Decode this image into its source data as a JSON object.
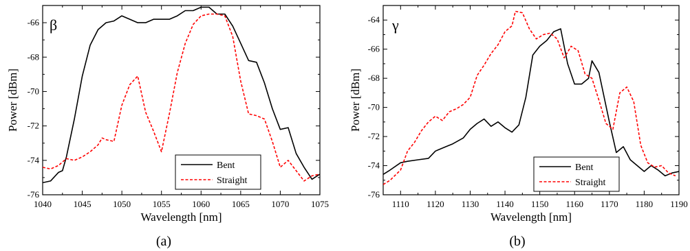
{
  "chart_data": [
    {
      "type": "line",
      "panel_label": "β",
      "caption": "(a)",
      "xlabel": "Wavelength [nm]",
      "ylabel": "Power [dBm]",
      "xlim": [
        1040,
        1075
      ],
      "ylim": [
        -76,
        -65
      ],
      "xticks": [
        1040,
        1045,
        1050,
        1055,
        1060,
        1065,
        1070,
        1075
      ],
      "yticks": [
        -76,
        -74,
        -72,
        -70,
        -68,
        -66
      ],
      "legend_position": "bottom-right",
      "grid": false,
      "series": [
        {
          "name": "Bent",
          "color": "#000000",
          "style": "solid",
          "x": [
            1040,
            1041,
            1042,
            1042.5,
            1043,
            1044,
            1045,
            1046,
            1047,
            1047.5,
            1048,
            1049,
            1050,
            1051,
            1052,
            1053,
            1054,
            1055,
            1056,
            1057,
            1058,
            1059,
            1060,
            1061,
            1062,
            1063,
            1064,
            1065,
            1066,
            1067,
            1068,
            1069,
            1070,
            1071,
            1072,
            1073,
            1074,
            1075
          ],
          "y": [
            -75.3,
            -75.2,
            -74.7,
            -74.6,
            -73.8,
            -71.6,
            -69.1,
            -67.3,
            -66.4,
            -66.2,
            -66.0,
            -65.9,
            -65.6,
            -65.8,
            -66.0,
            -66.0,
            -65.8,
            -65.8,
            -65.8,
            -65.6,
            -65.3,
            -65.3,
            -65.1,
            -65.1,
            -65.5,
            -65.5,
            -66.2,
            -67.2,
            -68.2,
            -68.3,
            -69.5,
            -71.0,
            -72.2,
            -72.1,
            -73.6,
            -74.4,
            -75.1,
            -74.8
          ]
        },
        {
          "name": "Straight",
          "color": "#ff0000",
          "style": "dashed",
          "x": [
            1040,
            1041,
            1042,
            1043,
            1044,
            1045,
            1046,
            1047,
            1047.5,
            1048,
            1049,
            1050,
            1051,
            1052,
            1053,
            1054,
            1055,
            1056,
            1057,
            1058,
            1059,
            1060,
            1061,
            1062,
            1063,
            1064,
            1065,
            1066,
            1067,
            1068,
            1069,
            1070,
            1071,
            1072,
            1073,
            1074,
            1075
          ],
          "y": [
            -74.4,
            -74.5,
            -74.3,
            -73.9,
            -74.0,
            -73.8,
            -73.5,
            -73.1,
            -72.7,
            -72.8,
            -72.9,
            -70.8,
            -69.6,
            -69.1,
            -71.2,
            -72.3,
            -73.5,
            -71.3,
            -68.9,
            -67.2,
            -66.1,
            -65.6,
            -65.5,
            -65.5,
            -65.6,
            -66.8,
            -69.4,
            -71.3,
            -71.4,
            -71.6,
            -72.9,
            -74.4,
            -74.0,
            -74.6,
            -75.2,
            -74.9,
            -74.8
          ]
        }
      ]
    },
    {
      "type": "line",
      "panel_label": "γ",
      "caption": "(b)",
      "xlabel": "Wavelength [nm]",
      "ylabel": "Power [dBm]",
      "xlim": [
        1105,
        1190
      ],
      "ylim": [
        -76,
        -63
      ],
      "xticks": [
        1110,
        1120,
        1130,
        1140,
        1150,
        1160,
        1170,
        1180,
        1190
      ],
      "yticks": [
        -76,
        -74,
        -72,
        -70,
        -68,
        -66,
        -64
      ],
      "legend_position": "bottom-right",
      "grid": false,
      "series": [
        {
          "name": "Bent",
          "color": "#000000",
          "style": "solid",
          "x": [
            1105,
            1107,
            1110,
            1112,
            1115,
            1118,
            1120,
            1123,
            1125,
            1128,
            1130,
            1132,
            1134,
            1136,
            1138,
            1140,
            1142,
            1144,
            1146,
            1148,
            1150,
            1152,
            1154,
            1156,
            1158,
            1160,
            1162,
            1164,
            1165,
            1167,
            1170,
            1172,
            1174,
            1176,
            1178,
            1180,
            1182,
            1184,
            1186,
            1188,
            1190
          ],
          "y": [
            -74.6,
            -74.3,
            -73.8,
            -73.7,
            -73.6,
            -73.5,
            -73.0,
            -72.7,
            -72.5,
            -72.1,
            -71.5,
            -71.1,
            -70.8,
            -71.3,
            -71.0,
            -71.4,
            -71.7,
            -71.2,
            -69.3,
            -66.4,
            -65.8,
            -65.4,
            -64.8,
            -64.6,
            -67.0,
            -68.4,
            -68.4,
            -68.0,
            -66.8,
            -67.6,
            -71.0,
            -73.1,
            -72.7,
            -73.6,
            -74.0,
            -74.4,
            -74.0,
            -74.3,
            -74.7,
            -74.5,
            -74.4
          ]
        },
        {
          "name": "Straight",
          "color": "#ff0000",
          "style": "dashed",
          "x": [
            1105,
            1107,
            1110,
            1112,
            1114,
            1116,
            1118,
            1120,
            1122,
            1124,
            1126,
            1128,
            1130,
            1132,
            1134,
            1136,
            1138,
            1140,
            1142,
            1143,
            1145,
            1147,
            1149,
            1151,
            1153,
            1155,
            1157,
            1159,
            1161,
            1163,
            1165,
            1167,
            1169,
            1171,
            1173,
            1175,
            1177,
            1179,
            1181,
            1183,
            1185,
            1187,
            1189
          ],
          "y": [
            -75.3,
            -75.0,
            -74.3,
            -73.0,
            -72.4,
            -71.6,
            -71.0,
            -70.6,
            -70.9,
            -70.3,
            -70.1,
            -69.8,
            -69.3,
            -67.8,
            -67.1,
            -66.3,
            -65.7,
            -64.8,
            -64.4,
            -63.4,
            -63.5,
            -64.6,
            -65.3,
            -65.0,
            -64.9,
            -65.3,
            -66.6,
            -65.8,
            -66.1,
            -67.7,
            -68.0,
            -69.5,
            -71.1,
            -71.5,
            -69.0,
            -68.6,
            -69.6,
            -72.6,
            -73.8,
            -74.1,
            -74.0,
            -74.5,
            -74.7
          ]
        }
      ]
    }
  ]
}
